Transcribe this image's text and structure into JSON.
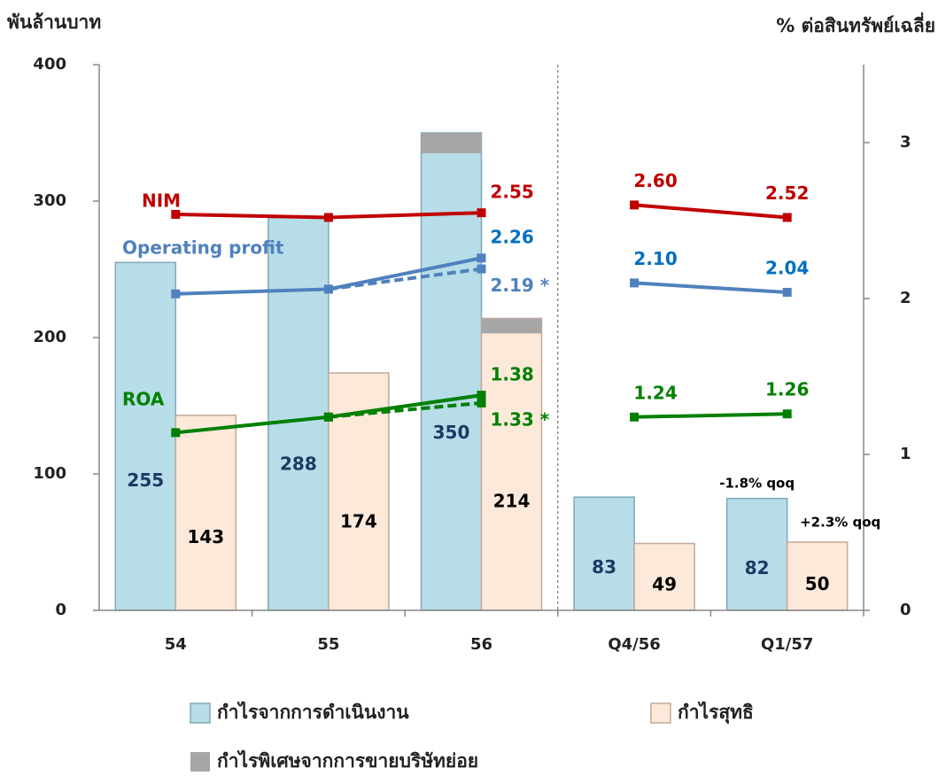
{
  "chart_data": {
    "type": "combo",
    "y_label": "พันล้านบาท",
    "y2_label": "% ต่อสินทรัพย์เฉลี่ย",
    "categories": [
      "54",
      "55",
      "56",
      "Q4/56",
      "Q1/57"
    ],
    "divider_after": "56",
    "ylim": [
      0,
      400
    ],
    "yticks": [
      0,
      100,
      200,
      300,
      400
    ],
    "y2lim": [
      0,
      3.5
    ],
    "y2ticks": [
      0,
      1,
      2,
      3
    ],
    "series": [
      {
        "name": "กำไรจากการดำเนินงาน",
        "kind": "bar",
        "color": "#b7dde8",
        "values": [
          255,
          288,
          350,
          83,
          82
        ]
      },
      {
        "name": "กำไรสุทธิ",
        "kind": "bar",
        "color": "#fde9d9",
        "values": [
          143,
          174,
          214,
          49,
          50
        ]
      },
      {
        "name": "กำไรพิเศษจากการขายบริษัทย่อย",
        "kind": "bar_part",
        "color": "#a6a6a6",
        "values": [
          [
            null,
            null,
            15,
            null,
            null
          ],
          [
            null,
            null,
            11,
            null,
            null
          ]
        ]
      },
      {
        "name": "NIM",
        "kind": "line",
        "axis": "y2",
        "color": "#c00000",
        "values": [
          2.54,
          2.52,
          2.55,
          2.6,
          2.52
        ],
        "value_labels": [
          null,
          null,
          "2.55",
          "2.60",
          "2.52"
        ]
      },
      {
        "name": "Operating profit",
        "kind": "line",
        "axis": "y2",
        "color": "#4f81bd",
        "label_color": "#0070c0",
        "values": [
          2.03,
          2.06,
          2.26,
          2.1,
          2.04
        ],
        "value_labels": [
          null,
          null,
          "2.26",
          "2.10",
          "2.04"
        ]
      },
      {
        "kind": "line",
        "axis": "y2",
        "dashed": true,
        "color": "#4f81bd",
        "values": [
          null,
          2.06,
          2.19,
          null,
          null
        ],
        "value_labels": [
          null,
          null,
          "2.19 *",
          null,
          null
        ]
      },
      {
        "name": "ROA",
        "kind": "line",
        "axis": "y2",
        "color": "#008000",
        "values": [
          1.14,
          1.24,
          1.38,
          1.24,
          1.26
        ],
        "value_labels": [
          null,
          null,
          "1.38",
          "1.24",
          "1.26"
        ]
      },
      {
        "kind": "line",
        "axis": "y2",
        "dashed": true,
        "color": "#008000",
        "values": [
          null,
          1.24,
          1.33,
          null,
          null
        ],
        "value_labels": [
          null,
          null,
          "1.33 *",
          null,
          null
        ]
      }
    ],
    "annotations": [
      "-1.8% qoq",
      "+2.3% qoq"
    ]
  }
}
